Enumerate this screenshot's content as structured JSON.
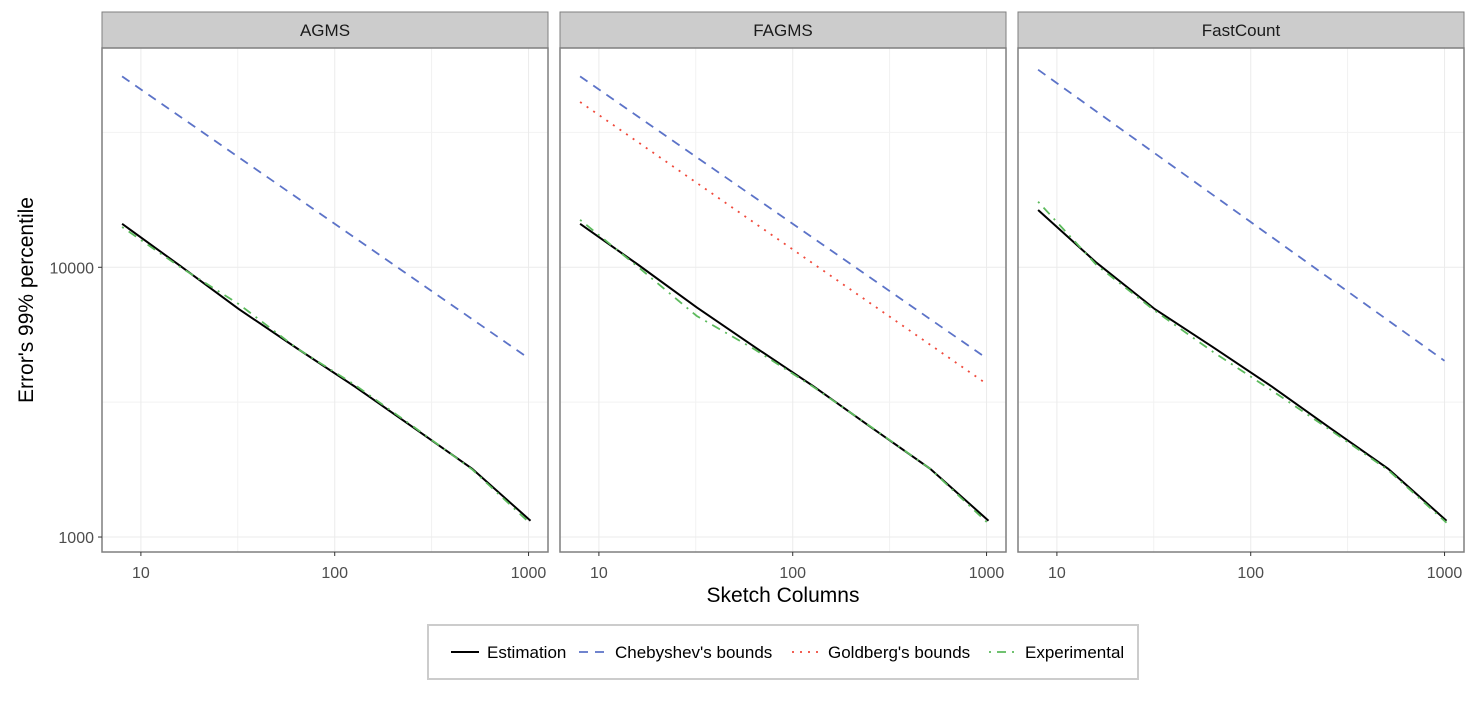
{
  "chart_data": {
    "type": "line",
    "xscale": "log10",
    "yscale": "log10",
    "xlabel": "Sketch Columns",
    "ylabel": "Error's 99% percentile",
    "xlim": [
      6.3,
      1260
    ],
    "ylim": [
      880,
      65000
    ],
    "xticks": [
      10,
      100,
      1000
    ],
    "xtick_labels": [
      "10",
      "100",
      "1000"
    ],
    "yticks": [
      1000,
      10000
    ],
    "ytick_labels": [
      "1000",
      "10000"
    ],
    "grid": true,
    "legend_position": "bottom",
    "series_styles": [
      {
        "name": "Estimation",
        "color": "#000000",
        "dash": "solid"
      },
      {
        "name": "Chebyshev's bounds",
        "color": "#5c73c8",
        "dash": "dashed"
      },
      {
        "name": "Goldberg's bounds",
        "color": "#f04a3c",
        "dash": "dotted"
      },
      {
        "name": "Experimental",
        "color": "#5cba5c",
        "dash": "dotdash"
      }
    ],
    "facets": [
      {
        "title": "AGMS",
        "series": [
          {
            "name": "Estimation",
            "x": [
              8,
              16,
              32,
              64,
              128,
              256,
              512,
              1024
            ],
            "y": [
              14500,
              10100,
              7000,
              5000,
              3600,
              2540,
              1790,
              1150
            ]
          },
          {
            "name": "Chebyshev's bounds",
            "x": [
              8,
              1000
            ],
            "y": [
              51000,
              4600
            ]
          },
          {
            "name": "Experimental",
            "x": [
              8,
              16,
              32,
              64,
              128,
              256,
              512,
              1024
            ],
            "y": [
              14100,
              10000,
              7300,
              5000,
              3650,
              2560,
              1780,
              1120
            ]
          }
        ]
      },
      {
        "title": "FAGMS",
        "series": [
          {
            "name": "Estimation",
            "x": [
              8,
              16,
              32,
              64,
              128,
              256,
              512,
              1024
            ],
            "y": [
              14500,
              10200,
              7100,
              5050,
              3620,
              2540,
              1790,
              1150
            ]
          },
          {
            "name": "Chebyshev's bounds",
            "x": [
              8,
              1000
            ],
            "y": [
              51000,
              4600
            ]
          },
          {
            "name": "Goldberg's bounds",
            "x": [
              8,
              1000
            ],
            "y": [
              41000,
              3700
            ]
          },
          {
            "name": "Experimental",
            "x": [
              8,
              16,
              32,
              64,
              128,
              256,
              512,
              1024
            ],
            "y": [
              15000,
              10000,
              6600,
              4950,
              3600,
              2550,
              1790,
              1120
            ]
          }
        ]
      },
      {
        "title": "FastCount",
        "series": [
          {
            "name": "Estimation",
            "x": [
              8,
              16,
              32,
              64,
              128,
              256,
              512,
              1024
            ],
            "y": [
              16300,
              10400,
              7000,
              5050,
              3620,
              2540,
              1790,
              1150
            ]
          },
          {
            "name": "Chebyshev's bounds",
            "x": [
              8,
              1000
            ],
            "y": [
              54000,
              4500
            ]
          },
          {
            "name": "Experimental",
            "x": [
              8,
              16,
              32,
              64,
              128,
              256,
              512,
              1024
            ],
            "y": [
              17500,
              10200,
              6900,
              4850,
              3500,
              2500,
              1770,
              1130
            ]
          }
        ]
      }
    ]
  }
}
